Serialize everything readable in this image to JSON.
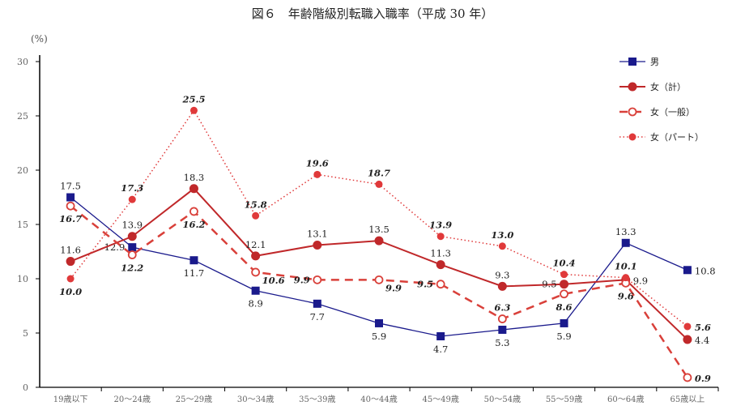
{
  "chart_data": {
    "type": "line",
    "title": "図６　年齢階級別転職入職率（平成 30 年）",
    "ylabel": "(%)",
    "ylim": [
      0,
      30
    ],
    "yticks": [
      0,
      5,
      10,
      15,
      20,
      25,
      30
    ],
    "legend_position": "top-right",
    "categories": [
      "19歳以下",
      "20～24歳",
      "25～29歳",
      "30～34歳",
      "35～39歳",
      "40～44歳",
      "45～49歳",
      "50～54歳",
      "55～59歳",
      "60～64歳",
      "65歳以上"
    ],
    "series": [
      {
        "name": "男",
        "color": "#1a1a8c",
        "values": [
          17.5,
          12.9,
          11.7,
          8.9,
          7.7,
          5.9,
          4.7,
          5.3,
          5.9,
          13.3,
          10.8
        ]
      },
      {
        "name": "女（計）",
        "color": "#c0282a",
        "values": [
          11.6,
          13.9,
          18.3,
          12.1,
          13.1,
          13.5,
          11.3,
          9.3,
          9.5,
          9.9,
          4.4
        ]
      },
      {
        "name": "女（一般）",
        "color": "#d9403a",
        "values": [
          16.7,
          12.2,
          16.2,
          10.6,
          9.9,
          9.9,
          9.5,
          6.3,
          8.6,
          9.6,
          0.9
        ]
      },
      {
        "name": "女（パート）",
        "color": "#e0393a",
        "values": [
          10.0,
          17.3,
          25.5,
          15.8,
          19.6,
          18.7,
          13.9,
          13.0,
          10.4,
          10.1,
          5.6
        ]
      }
    ]
  }
}
